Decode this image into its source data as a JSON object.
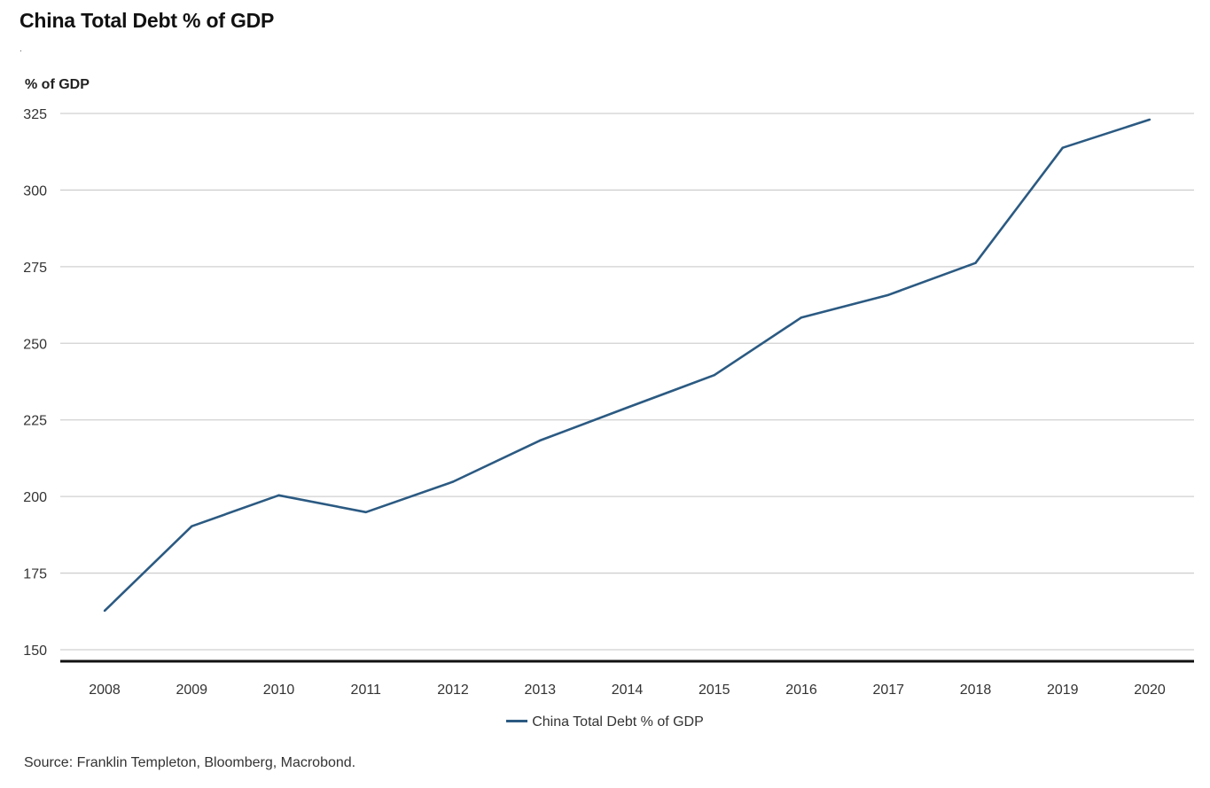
{
  "chart_data": {
    "type": "line",
    "title": "China Total Debt % of GDP",
    "subtitle": ".",
    "ylabel": "% of GDP",
    "xlabel": "",
    "x": [
      "2008",
      "2009",
      "2010",
      "2011",
      "2012",
      "2013",
      "2014",
      "2015",
      "2016",
      "2017",
      "2018",
      "2019",
      "2020"
    ],
    "series": [
      {
        "name": "China Total Debt % of GDP",
        "color": "#2b5a82",
        "values": [
          162.7,
          190.3,
          200.4,
          194.9,
          204.8,
          218.3,
          229.0,
          239.6,
          258.4,
          265.8,
          276.2,
          313.8,
          323.0
        ]
      }
    ],
    "ylim": [
      150,
      325
    ],
    "yticks": [
      150,
      175,
      200,
      225,
      250,
      275,
      300,
      325
    ],
    "grid": true,
    "legend": "bottom-center",
    "source": "Source: Franklin Templeton, Bloomberg, Macrobond."
  }
}
